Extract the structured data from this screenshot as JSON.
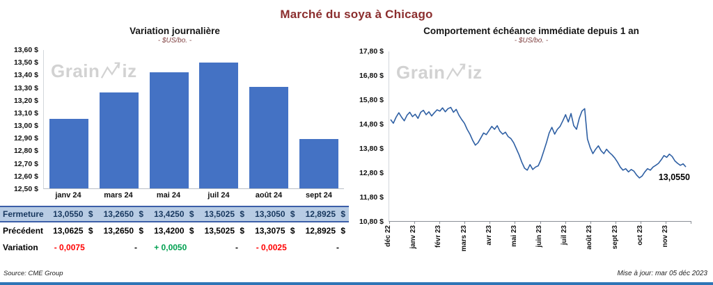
{
  "page": {
    "title": "Marché du soya à Chicago",
    "source": "Source: CME Group",
    "updated": "Mise à jour: mar 05 déc 2023"
  },
  "watermark": {
    "part1": "Grain",
    "part2": "iz"
  },
  "colors": {
    "title": "#8B2E2E",
    "bar": "#4472C4",
    "line": "#2E5FA3",
    "fermeture_bg": "#B8CCE4",
    "fermeture_text": "#17375E",
    "fermeture_border": "#3B5EA8",
    "negative": "#FF0000",
    "positive": "#00A050",
    "watermark": "#D2D2D2"
  },
  "chart_data": [
    {
      "type": "bar",
      "title": "Variation  journalière",
      "subtitle": "- $US/bo. -",
      "categories": [
        "janv 24",
        "mars 24",
        "mai 24",
        "juil 24",
        "août 24",
        "sept 24"
      ],
      "values": [
        13.055,
        13.265,
        13.425,
        13.5025,
        13.305,
        12.8925
      ],
      "ylim": [
        12.5,
        13.6
      ],
      "ytick_labels": [
        "13,60 $",
        "13,50 $",
        "13,40 $",
        "13,30 $",
        "13,20 $",
        "13,10 $",
        "13,00 $",
        "12,90 $",
        "12,80 $",
        "12,70 $",
        "12,60 $",
        "12,50 $"
      ],
      "grid": false,
      "legend": "none"
    },
    {
      "type": "line",
      "title": "Comportement  échéance  immédiate  depuis 1 an",
      "subtitle": "- $US/bo. -",
      "x_labels": [
        "déc 22",
        "janv 23",
        "févr 23",
        "mars 23",
        "avr 23",
        "mai 23",
        "juin 23",
        "juil 23",
        "août 23",
        "sept 23",
        "oct 23",
        "nov 23"
      ],
      "values": [
        15.0,
        14.85,
        15.1,
        15.28,
        15.1,
        14.95,
        15.18,
        15.3,
        15.12,
        15.22,
        15.05,
        15.3,
        15.38,
        15.2,
        15.32,
        15.15,
        15.28,
        15.4,
        15.35,
        15.48,
        15.32,
        15.45,
        15.5,
        15.3,
        15.42,
        15.18,
        15.0,
        14.85,
        14.6,
        14.4,
        14.15,
        13.95,
        14.05,
        14.25,
        14.45,
        14.38,
        14.55,
        14.72,
        14.6,
        14.75,
        14.52,
        14.4,
        14.48,
        14.3,
        14.22,
        14.05,
        13.8,
        13.55,
        13.25,
        13.0,
        12.92,
        13.15,
        12.95,
        13.05,
        13.1,
        13.35,
        13.7,
        14.05,
        14.45,
        14.68,
        14.4,
        14.6,
        14.72,
        14.95,
        15.2,
        14.9,
        15.25,
        14.75,
        14.6,
        15.05,
        15.35,
        15.45,
        14.2,
        13.85,
        13.6,
        13.78,
        13.92,
        13.72,
        13.6,
        13.78,
        13.65,
        13.55,
        13.42,
        13.25,
        13.05,
        12.92,
        12.98,
        12.85,
        12.95,
        12.88,
        12.72,
        12.6,
        12.68,
        12.85,
        12.98,
        12.92,
        13.05,
        13.12,
        13.2,
        13.35,
        13.52,
        13.45,
        13.58,
        13.48,
        13.3,
        13.2,
        13.12,
        13.18,
        13.055
      ],
      "ylim": [
        10.8,
        17.8
      ],
      "ytick_labels": [
        "17,80 $",
        "16,80 $",
        "15,80 $",
        "14,80 $",
        "13,80 $",
        "12,80 $",
        "11,80 $",
        "10,80 $"
      ],
      "last_label": "13,0550",
      "grid": false,
      "legend": "none"
    }
  ],
  "table": {
    "rows": [
      {
        "label": "Fermeture",
        "style": "fermeture",
        "type": "money",
        "currency": "$",
        "values": [
          "13,0550",
          "13,2650",
          "13,4250",
          "13,5025",
          "13,3050",
          "12,8925"
        ]
      },
      {
        "label": "Précédent",
        "style": "precedent",
        "type": "money",
        "currency": "$",
        "values": [
          "13,0625",
          "13,2650",
          "13,4200",
          "13,5025",
          "13,3075",
          "12,8925"
        ]
      },
      {
        "label": "Variation",
        "style": "variation",
        "type": "delta",
        "values": [
          {
            "text": "- 0,0075",
            "tone": "neg"
          },
          {
            "text": "-",
            "tone": "flat"
          },
          {
            "text": "+ 0,0050",
            "tone": "pos"
          },
          {
            "text": "-",
            "tone": "flat"
          },
          {
            "text": "- 0,0025",
            "tone": "neg"
          },
          {
            "text": "-",
            "tone": "flat"
          }
        ]
      }
    ]
  }
}
